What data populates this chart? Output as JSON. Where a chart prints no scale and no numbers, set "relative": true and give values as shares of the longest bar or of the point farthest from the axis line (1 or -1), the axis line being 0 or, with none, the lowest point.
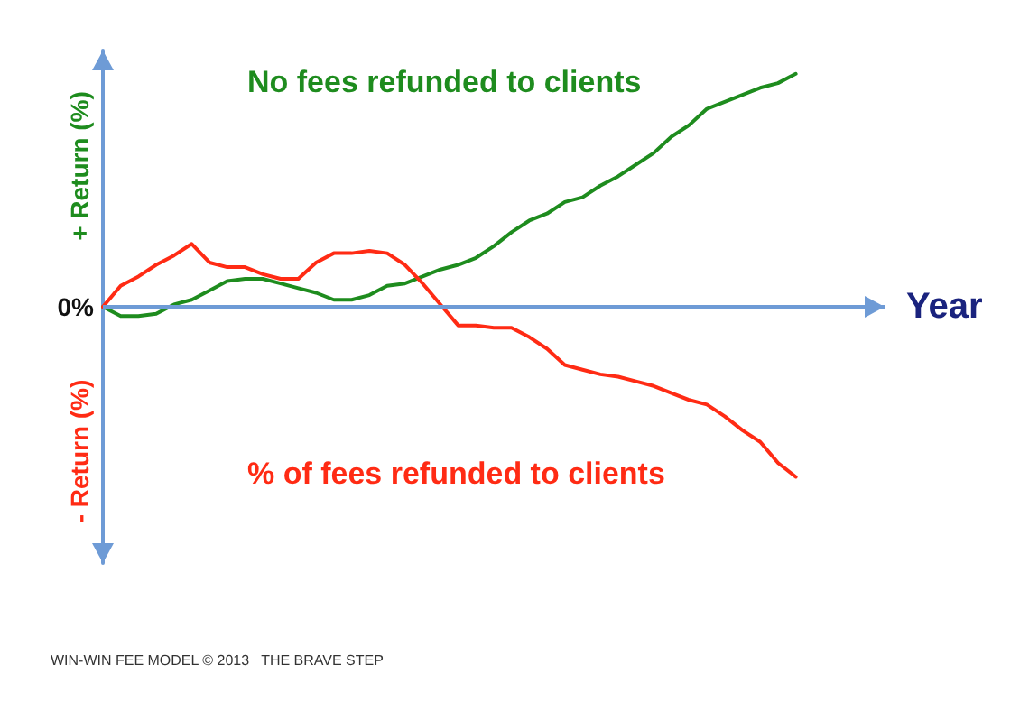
{
  "chart_data": {
    "type": "line",
    "relative": true,
    "xlabel": "Year",
    "categories": [
      null,
      null,
      null,
      null,
      null,
      null,
      null,
      null,
      null,
      null,
      null,
      null,
      null,
      null,
      null,
      null,
      null,
      null,
      null,
      null,
      null,
      null,
      null,
      null,
      null,
      null,
      null,
      null,
      null,
      null,
      null,
      null,
      null,
      null,
      null,
      null,
      null,
      null,
      null,
      null
    ],
    "series": [
      {
        "name": "No fees refunded to clients",
        "color": "#1e8c1e",
        "values": [
          0,
          -0.04,
          -0.04,
          -0.03,
          0.01,
          0.03,
          0.07,
          0.11,
          0.12,
          0.12,
          0.1,
          0.08,
          0.06,
          0.03,
          0.03,
          0.05,
          0.09,
          0.1,
          0.13,
          0.16,
          0.18,
          0.21,
          0.26,
          0.32,
          0.37,
          0.4,
          0.45,
          0.47,
          0.52,
          0.56,
          0.61,
          0.66,
          0.73,
          0.78,
          0.85,
          0.88,
          0.91,
          0.94,
          0.96,
          1
        ]
      },
      {
        "name": "% of fees refunded to clients",
        "color": "#ff2b14",
        "values": [
          0,
          0.09,
          0.13,
          0.18,
          0.22,
          0.27,
          0.19,
          0.17,
          0.17,
          0.14,
          0.12,
          0.12,
          0.19,
          0.23,
          0.23,
          0.24,
          0.23,
          0.18,
          0.1,
          0.01,
          -0.08,
          -0.08,
          -0.09,
          -0.09,
          -0.13,
          -0.18,
          -0.25,
          -0.27,
          -0.29,
          -0.3,
          -0.32,
          -0.34,
          -0.37,
          -0.4,
          -0.42,
          -0.47,
          -0.53,
          -0.58,
          -0.67,
          -0.73
        ]
      }
    ],
    "ref_lines": [
      {
        "axis": "y",
        "value": 0,
        "label": "0%",
        "color": "#6e9bd6"
      }
    ],
    "annotations": [
      "+ Return (%)",
      "- Return (%)",
      "WIN-WIN FEE MODEL © 2013   THE BRAVE STEP"
    ],
    "marker": "none",
    "line_style": "solid",
    "grid": false,
    "legend": false
  }
}
